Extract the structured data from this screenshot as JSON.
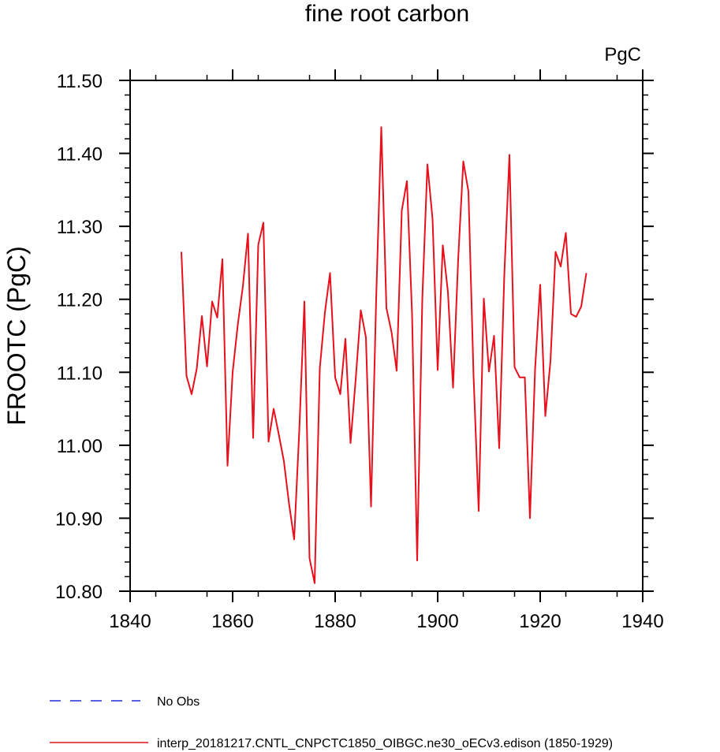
{
  "chart_data": {
    "type": "line",
    "title": "fine root carbon",
    "units_label": "PgC",
    "ylabel": "FROOTC  (PgC)",
    "xlabel": "",
    "xlim": [
      1840,
      1940
    ],
    "ylim": [
      10.8,
      11.5
    ],
    "x_ticks": [
      1840,
      1860,
      1880,
      1900,
      1920,
      1940
    ],
    "x_tick_labels": [
      "1840",
      "1860",
      "1880",
      "1900",
      "1920",
      "1940"
    ],
    "y_ticks": [
      10.8,
      10.9,
      11.0,
      11.1,
      11.2,
      11.3,
      11.4,
      11.5
    ],
    "y_tick_labels": [
      "10.80",
      "10.90",
      "11.00",
      "11.10",
      "11.20",
      "11.30",
      "11.40",
      "11.50"
    ],
    "grid": false,
    "legend_position": "bottom",
    "series": [
      {
        "name": "interp_20181217.CNTL_CNPCTC1850_OIBGC.ne30_oECv3.edison (1850-1929)",
        "color": "#e8101b",
        "dash": "solid",
        "x": [
          1850,
          1851,
          1852,
          1853,
          1854,
          1855,
          1856,
          1857,
          1858,
          1859,
          1860,
          1861,
          1862,
          1863,
          1864,
          1865,
          1866,
          1867,
          1868,
          1869,
          1870,
          1871,
          1872,
          1873,
          1874,
          1875,
          1876,
          1877,
          1878,
          1879,
          1880,
          1881,
          1882,
          1883,
          1884,
          1885,
          1886,
          1887,
          1888,
          1889,
          1890,
          1891,
          1892,
          1893,
          1894,
          1895,
          1896,
          1897,
          1898,
          1899,
          1900,
          1901,
          1902,
          1903,
          1904,
          1905,
          1906,
          1907,
          1908,
          1909,
          1910,
          1911,
          1912,
          1913,
          1914,
          1915,
          1916,
          1917,
          1918,
          1919,
          1920,
          1921,
          1922,
          1923,
          1924,
          1925,
          1926,
          1927,
          1928,
          1929
        ],
        "values": [
          11.265,
          11.095,
          11.07,
          11.105,
          11.177,
          11.108,
          11.197,
          11.175,
          11.255,
          10.972,
          11.1,
          11.165,
          11.218,
          11.29,
          11.01,
          11.275,
          11.305,
          11.005,
          11.05,
          11.015,
          10.978,
          10.92,
          10.871,
          11.02,
          11.197,
          10.845,
          10.811,
          11.105,
          11.182,
          11.236,
          11.093,
          11.07,
          11.146,
          11.003,
          11.09,
          11.185,
          11.148,
          10.916,
          11.2,
          11.436,
          11.188,
          11.155,
          11.102,
          11.322,
          11.362,
          11.18,
          10.842,
          11.2,
          11.385,
          11.31,
          11.103,
          11.274,
          11.21,
          11.079,
          11.255,
          11.389,
          11.348,
          11.095,
          10.91,
          11.201,
          11.101,
          11.15,
          10.996,
          11.234,
          11.398,
          11.107,
          11.093,
          11.093,
          10.9,
          11.104,
          11.22,
          11.04,
          11.115,
          11.265,
          11.245,
          11.291,
          11.18,
          11.176,
          11.19,
          11.236
        ]
      },
      {
        "name": "No Obs",
        "color": "#1f2bd6",
        "dash": "dashed",
        "x": [],
        "values": []
      }
    ]
  }
}
